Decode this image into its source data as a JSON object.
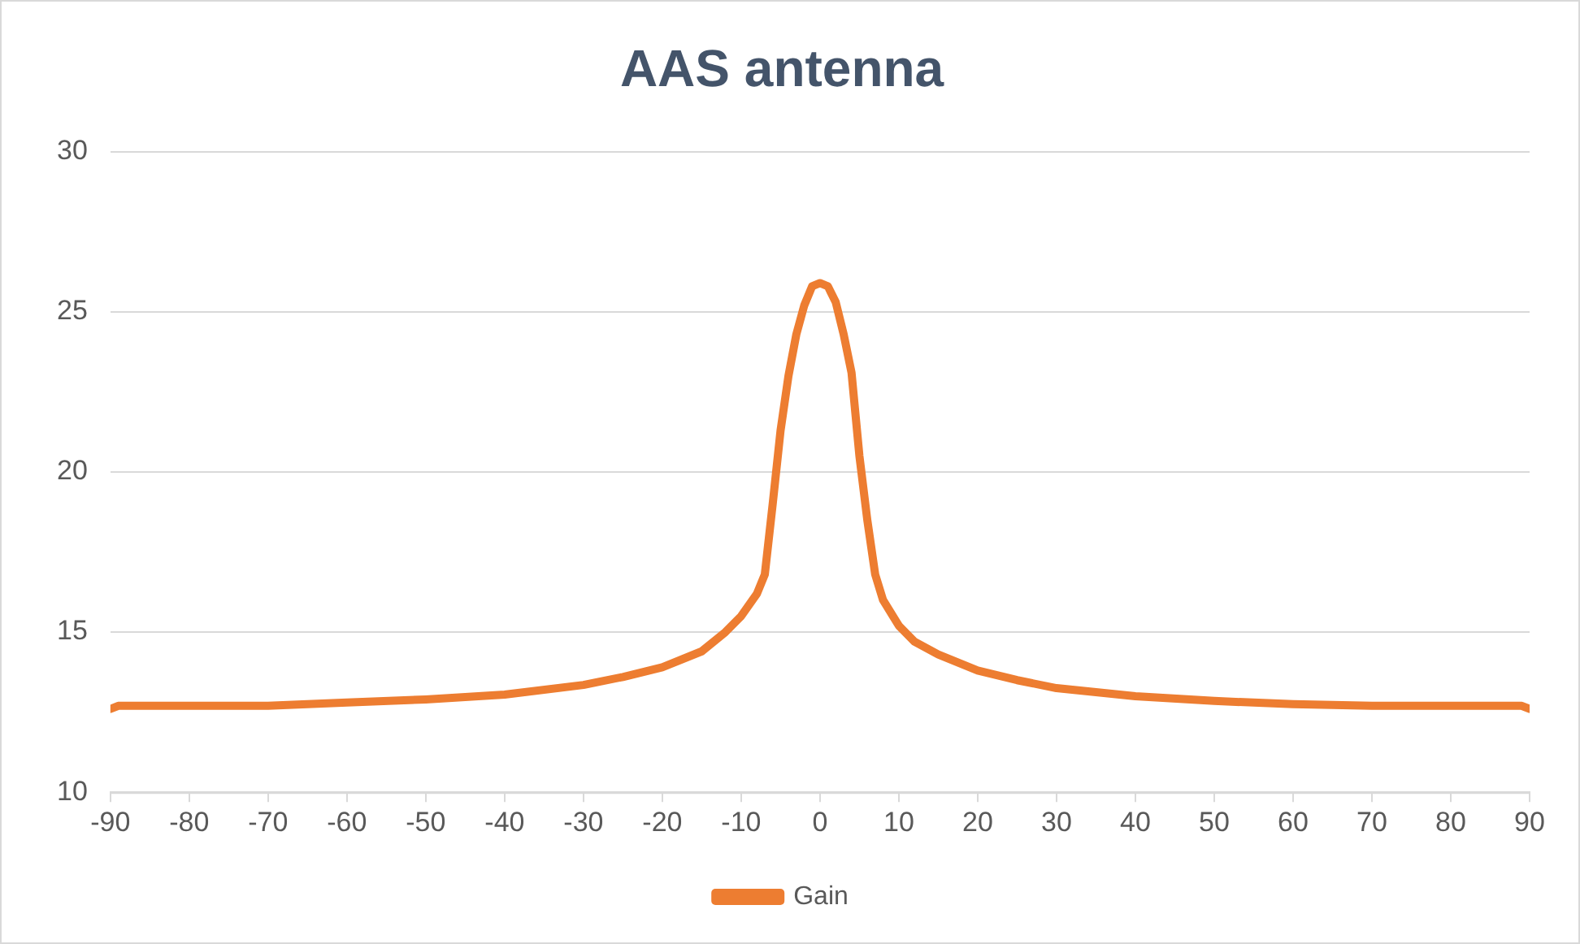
{
  "chart_data": {
    "type": "line",
    "title": "AAS antenna",
    "x": [
      -90,
      -89,
      -80,
      -70,
      -60,
      -50,
      -40,
      -30,
      -25,
      -20,
      -15,
      -12,
      -10,
      -8,
      -7,
      -6,
      -5,
      -4,
      -3,
      -2,
      -1,
      0,
      1,
      2,
      3,
      4,
      5,
      6,
      7,
      8,
      10,
      12,
      15,
      20,
      25,
      30,
      40,
      50,
      60,
      70,
      80,
      89,
      90
    ],
    "series": [
      {
        "name": "Gain",
        "color": "#ed7d31",
        "values": [
          12.6,
          12.7,
          12.7,
          12.7,
          12.8,
          12.9,
          13.05,
          13.35,
          13.6,
          13.9,
          14.4,
          15.0,
          15.5,
          16.2,
          16.8,
          19.0,
          21.3,
          23.0,
          24.3,
          25.2,
          25.8,
          25.9,
          25.8,
          25.3,
          24.3,
          23.1,
          20.5,
          18.5,
          16.8,
          16.0,
          15.2,
          14.7,
          14.3,
          13.8,
          13.5,
          13.25,
          13.0,
          12.85,
          12.75,
          12.7,
          12.7,
          12.7,
          12.6
        ]
      }
    ],
    "xlim": [
      -90,
      90
    ],
    "xticks": [
      -90,
      -80,
      -70,
      -60,
      -50,
      -40,
      -30,
      -20,
      -10,
      0,
      10,
      20,
      30,
      40,
      50,
      60,
      70,
      80,
      90
    ],
    "ylim": [
      10,
      30
    ],
    "yticks": [
      10,
      15,
      20,
      25,
      30
    ],
    "grid": "y",
    "legend": "bottom",
    "marker": "none",
    "line_style": "solid"
  }
}
